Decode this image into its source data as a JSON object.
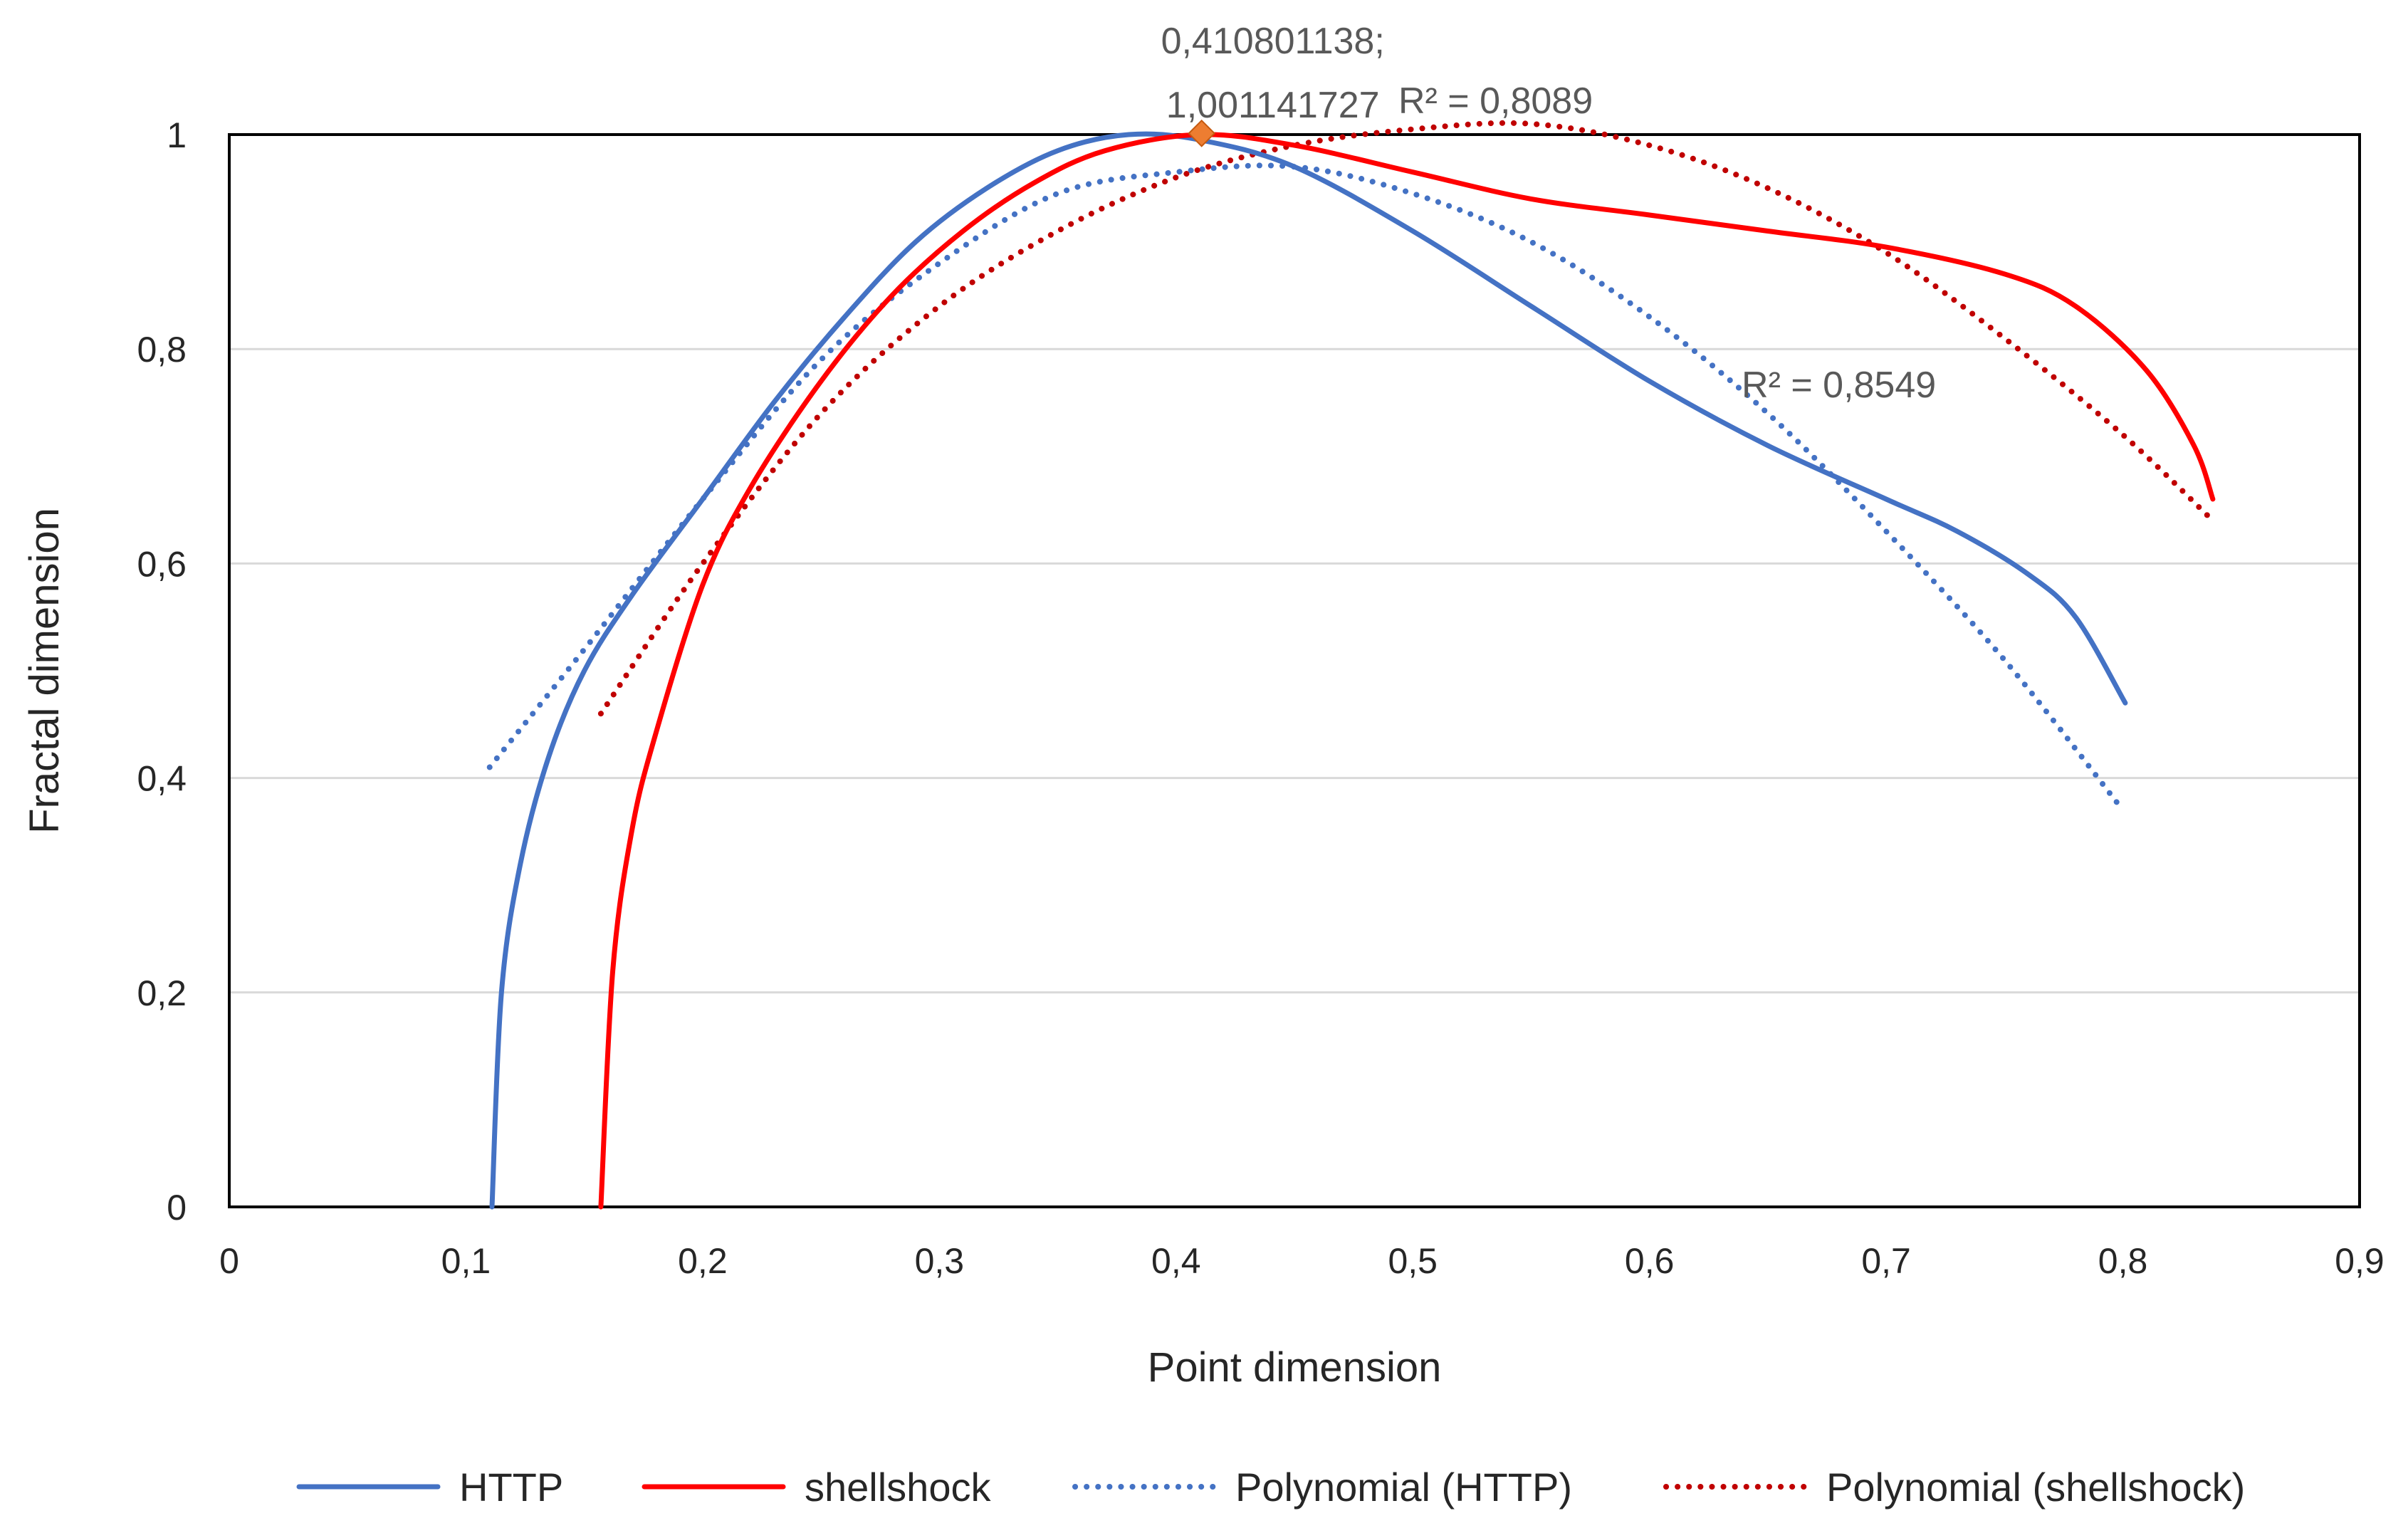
{
  "chart_data": {
    "type": "line",
    "title": "",
    "xlabel": "Point dimension",
    "ylabel": "Fractal dimension",
    "xlim": [
      0,
      0.9
    ],
    "ylim": [
      0,
      1
    ],
    "x_ticks": [
      "0",
      "0,1",
      "0,2",
      "0,3",
      "0,4",
      "0,5",
      "0,6",
      "0,7",
      "0,8",
      "0,9"
    ],
    "y_ticks": [
      "0",
      "0,2",
      "0,4",
      "0,6",
      "0,8",
      "1"
    ],
    "grid": "horizontal",
    "legend_position": "bottom",
    "series": [
      {
        "name": "HTTP",
        "style": "solid",
        "color": "#4472C4",
        "points": [
          [
            0.111,
            0.0
          ],
          [
            0.115,
            0.2
          ],
          [
            0.123,
            0.32
          ],
          [
            0.135,
            0.42
          ],
          [
            0.15,
            0.5
          ],
          [
            0.17,
            0.57
          ],
          [
            0.2,
            0.66
          ],
          [
            0.23,
            0.75
          ],
          [
            0.26,
            0.83
          ],
          [
            0.29,
            0.9
          ],
          [
            0.32,
            0.95
          ],
          [
            0.35,
            0.985
          ],
          [
            0.38,
            1.0
          ],
          [
            0.41,
            0.995
          ],
          [
            0.45,
            0.97
          ],
          [
            0.5,
            0.91
          ],
          [
            0.55,
            0.84
          ],
          [
            0.6,
            0.77
          ],
          [
            0.65,
            0.71
          ],
          [
            0.7,
            0.66
          ],
          [
            0.73,
            0.63
          ],
          [
            0.76,
            0.59
          ],
          [
            0.78,
            0.55
          ],
          [
            0.801,
            0.47
          ]
        ]
      },
      {
        "name": "shellshock",
        "style": "solid",
        "color": "#FF0000",
        "points": [
          [
            0.157,
            0.0
          ],
          [
            0.162,
            0.22
          ],
          [
            0.17,
            0.35
          ],
          [
            0.18,
            0.44
          ],
          [
            0.2,
            0.58
          ],
          [
            0.22,
            0.67
          ],
          [
            0.25,
            0.77
          ],
          [
            0.28,
            0.85
          ],
          [
            0.31,
            0.91
          ],
          [
            0.34,
            0.955
          ],
          [
            0.37,
            0.985
          ],
          [
            0.41,
            1.0
          ],
          [
            0.45,
            0.99
          ],
          [
            0.5,
            0.965
          ],
          [
            0.55,
            0.94
          ],
          [
            0.6,
            0.925
          ],
          [
            0.65,
            0.91
          ],
          [
            0.7,
            0.895
          ],
          [
            0.75,
            0.87
          ],
          [
            0.78,
            0.84
          ],
          [
            0.81,
            0.78
          ],
          [
            0.83,
            0.71
          ],
          [
            0.838,
            0.66
          ]
        ]
      },
      {
        "name": "Polynomial (HTTP)",
        "style": "dotted",
        "color": "#4472C4",
        "r_squared": "R² = 0,8549",
        "points": [
          [
            0.11,
            0.41
          ],
          [
            0.15,
            0.52
          ],
          [
            0.2,
            0.66
          ],
          [
            0.25,
            0.79
          ],
          [
            0.3,
            0.88
          ],
          [
            0.35,
            0.945
          ],
          [
            0.4,
            0.965
          ],
          [
            0.45,
            0.97
          ],
          [
            0.5,
            0.945
          ],
          [
            0.55,
            0.9
          ],
          [
            0.6,
            0.83
          ],
          [
            0.65,
            0.74
          ],
          [
            0.7,
            0.63
          ],
          [
            0.75,
            0.51
          ],
          [
            0.8,
            0.37
          ]
        ]
      },
      {
        "name": "Polynomial (shellshock)",
        "style": "dotted",
        "color": "#C00000",
        "r_squared": "R² = 0,8089",
        "points": [
          [
            0.157,
            0.46
          ],
          [
            0.2,
            0.6
          ],
          [
            0.25,
            0.74
          ],
          [
            0.3,
            0.84
          ],
          [
            0.35,
            0.91
          ],
          [
            0.4,
            0.96
          ],
          [
            0.45,
            0.99
          ],
          [
            0.5,
            1.005
          ],
          [
            0.55,
            1.01
          ],
          [
            0.6,
            0.99
          ],
          [
            0.65,
            0.95
          ],
          [
            0.7,
            0.89
          ],
          [
            0.75,
            0.81
          ],
          [
            0.8,
            0.72
          ],
          [
            0.838,
            0.64
          ]
        ]
      }
    ],
    "annotations": [
      {
        "text_line1": "0,410801138;",
        "text_line2": "1,001141727",
        "x": 0.410801138,
        "y": 1.001141727,
        "marker": "diamond",
        "marker_color": "#ED7D31"
      }
    ],
    "r2_labels": [
      {
        "text": "R² = 0,8089",
        "series": "Polynomial (shellshock)",
        "x": 0.535,
        "y": 1.02
      },
      {
        "text": "R² = 0,8549",
        "series": "Polynomial (HTTP)",
        "x": 0.68,
        "y": 0.755
      }
    ]
  }
}
